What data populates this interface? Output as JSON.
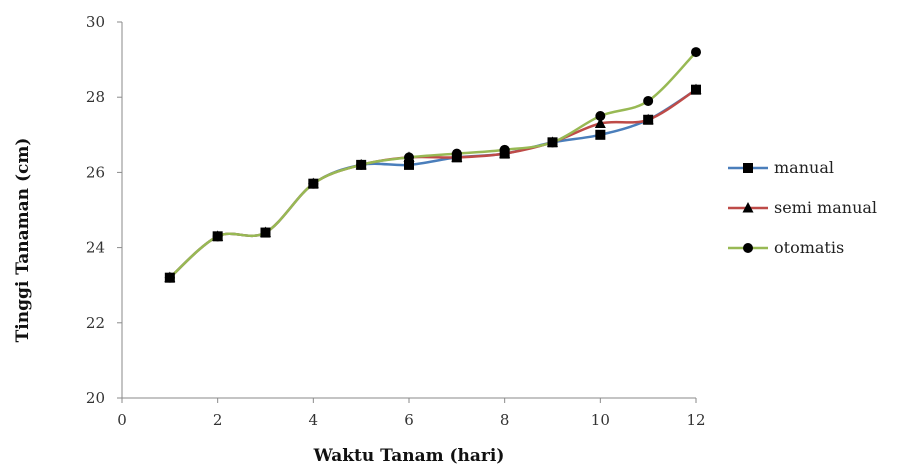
{
  "chart_data": {
    "type": "line",
    "xlabel": "Waktu Tanam (hari)",
    "ylabel": "Tinggi Tanaman (cm)",
    "xlim": [
      0,
      12
    ],
    "ylim": [
      20,
      30
    ],
    "xticks": [
      0,
      2,
      4,
      6,
      8,
      10,
      12
    ],
    "yticks": [
      20,
      22,
      24,
      26,
      28,
      30
    ],
    "grid": false,
    "legend_position": "right",
    "x": [
      1,
      2,
      3,
      4,
      5,
      6,
      7,
      8,
      9,
      10,
      11,
      12
    ],
    "series": [
      {
        "name": "manual",
        "color": "#4a7ebb",
        "marker": "square",
        "values": [
          23.2,
          24.3,
          24.4,
          25.7,
          26.2,
          26.2,
          26.4,
          26.5,
          26.8,
          27.0,
          27.4,
          28.2
        ]
      },
      {
        "name": "semi manual",
        "color": "#be4b48",
        "marker": "triangle",
        "values": [
          23.2,
          24.3,
          24.4,
          25.7,
          26.2,
          26.4,
          26.4,
          26.5,
          26.8,
          27.3,
          27.4,
          28.2
        ]
      },
      {
        "name": "otomatis",
        "color": "#98b954",
        "marker": "circle",
        "values": [
          23.2,
          24.3,
          24.4,
          25.7,
          26.2,
          26.4,
          26.5,
          26.6,
          26.8,
          27.5,
          27.9,
          29.2
        ]
      }
    ]
  }
}
